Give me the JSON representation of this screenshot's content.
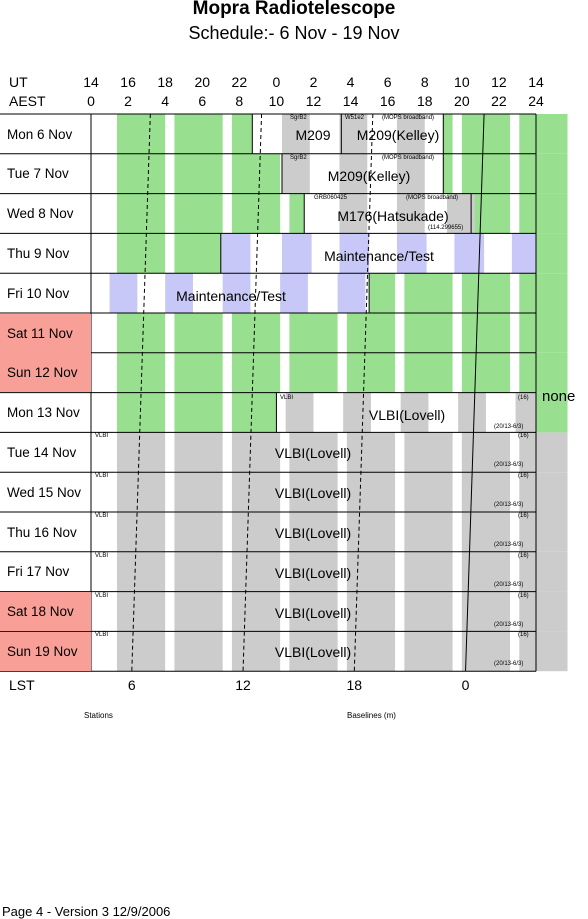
{
  "title": "Mopra Radiotelescope",
  "subtitle": "Schedule:- 6  Nov - 19 Nov",
  "header": {
    "ut_label": "UT",
    "aest_label": "AEST",
    "ut_hours": [
      "14",
      "16",
      "18",
      "20",
      "22",
      "0",
      "2",
      "4",
      "6",
      "8",
      "10",
      "12",
      "14"
    ],
    "aest_hours": [
      "0",
      "2",
      "4",
      "6",
      "8",
      "10",
      "12",
      "14",
      "16",
      "18",
      "20",
      "22",
      "24"
    ]
  },
  "days": [
    {
      "label": "Mon   6  Nov",
      "weekend": false
    },
    {
      "label": "Tue   7  Nov",
      "weekend": false
    },
    {
      "label": "Wed   8  Nov",
      "weekend": false
    },
    {
      "label": "Thu   9  Nov",
      "weekend": false
    },
    {
      "label": "Fri    10 Nov",
      "weekend": false
    },
    {
      "label": "Sat   11 Nov",
      "weekend": true
    },
    {
      "label": "Sun   12 Nov",
      "weekend": true
    },
    {
      "label": "Mon  13 Nov",
      "weekend": false
    },
    {
      "label": "Tue   14 Nov",
      "weekend": false
    },
    {
      "label": "Wed  15 Nov",
      "weekend": false
    },
    {
      "label": "Thu   16 Nov",
      "weekend": false
    },
    {
      "label": "Fri    17 Nov",
      "weekend": false
    },
    {
      "label": "Sat   18 Nov",
      "weekend": true
    },
    {
      "label": "Sun   19 Nov",
      "weekend": true
    }
  ],
  "lst": {
    "label": "LST",
    "ticks": [
      "6",
      "12",
      "18",
      "0"
    ]
  },
  "side_note": "none",
  "captions": {
    "stations": "Stations",
    "baselines": "Baselines (m)"
  },
  "footer": "Page 4 - Version 3  12/9/2006",
  "annotations": {
    "mon6_m209a": "M209",
    "mon6_m209b": "M209(Kelley)",
    "mon6_sgrb2": "SgrB2",
    "mon6_w51e2": "W51e2",
    "mon6_mops": "(MOPS broadband)",
    "tue7_m209": "M209(Kelley)",
    "tue7_sgrb2": "SgrB2",
    "tue7_mops": "(MOPS broadband)",
    "wed8_m176": "M176(Hatsukade)",
    "wed8_grb": "GRB060425",
    "wed8_mops": "(MOPS broadband)",
    "wed8_freq": "(114.299655)",
    "thu9_maint": "Maintenance/Test",
    "fri10_maint": "Maintenance/Test",
    "mon13_vlbi": "VLBI(Lovell)",
    "mon13_small": "VLBI",
    "mon13_16": "(16)",
    "mon13_stn": "(20/13-6/3)",
    "vlbi_label": "VLBI(Lovell)",
    "vlbi_small": "VLBI",
    "vlbi_16": "(16)",
    "vlbi_stn": "(20/13-6/3)"
  },
  "colors": {
    "green": "#98e090",
    "grey": "#cccccc",
    "lavender": "#c8c8f8",
    "weekend": "#f8a098"
  }
}
